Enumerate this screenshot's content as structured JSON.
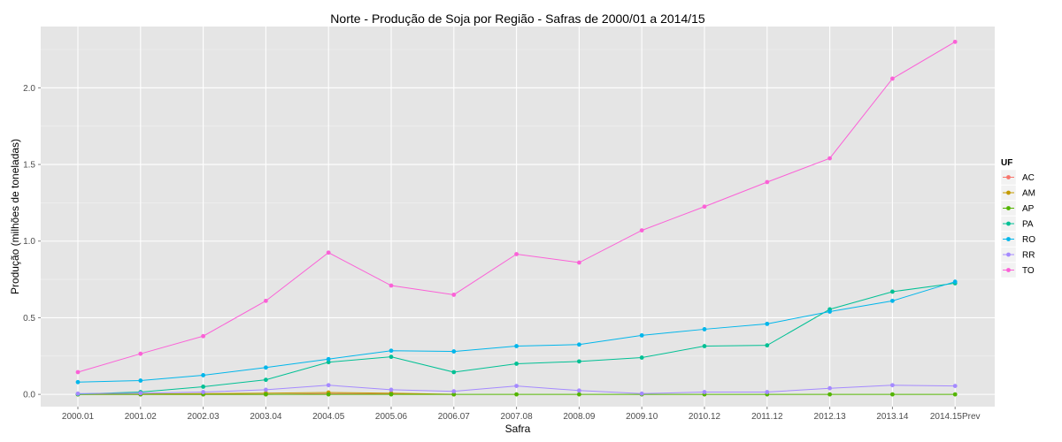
{
  "chart_data": {
    "type": "line",
    "title": "Norte  - Produção de Soja por Região - Safras de 2000/01 a 2014/15",
    "xlabel": "Safra",
    "ylabel": "Produção (milhões de toneladas)",
    "categories": [
      "2000.01",
      "2001.02",
      "2002.03",
      "2003.04",
      "2004.05",
      "2005.06",
      "2006.07",
      "2007.08",
      "2008.09",
      "2009.10",
      "2010.12",
      "2011.12",
      "2012.13",
      "2013.14",
      "2014.15Prev"
    ],
    "ylim": [
      -0.08,
      2.4
    ],
    "yticks": [
      0.0,
      0.5,
      1.0,
      1.5,
      2.0
    ],
    "ytick_labels": [
      "0.0",
      "0.5",
      "1.0",
      "1.5",
      "2.0"
    ],
    "grid": true,
    "legend": {
      "title": "UF",
      "position": "right"
    },
    "series": [
      {
        "name": "AC",
        "color": "#F8766D",
        "values": [
          0.0,
          0.0,
          0.0,
          0.0,
          0.005,
          0.003,
          0.0,
          null,
          null,
          null,
          null,
          null,
          null,
          null,
          null
        ]
      },
      {
        "name": "AM",
        "color": "#C49A00",
        "values": [
          0.0,
          0.002,
          0.005,
          0.008,
          0.012,
          0.008,
          0.0,
          null,
          null,
          null,
          null,
          null,
          null,
          null,
          null
        ]
      },
      {
        "name": "AP",
        "color": "#53B400",
        "values": [
          0.0,
          0.0,
          0.0,
          0.0,
          0.0,
          0.0,
          0.0,
          0.0,
          0.0,
          0.0,
          0.0,
          0.0,
          0.0,
          0.0,
          0.0
        ]
      },
      {
        "name": "PA",
        "color": "#00C094",
        "values": [
          0.002,
          0.015,
          0.05,
          0.095,
          0.21,
          0.245,
          0.145,
          0.2,
          0.215,
          0.24,
          0.315,
          0.32,
          0.555,
          0.67,
          0.725
        ]
      },
      {
        "name": "RO",
        "color": "#00B6EB",
        "values": [
          0.08,
          0.09,
          0.125,
          0.175,
          0.23,
          0.285,
          0.28,
          0.315,
          0.325,
          0.385,
          0.425,
          0.46,
          0.54,
          0.61,
          0.735
        ]
      },
      {
        "name": "RR",
        "color": "#A58AFF",
        "values": [
          0.005,
          0.008,
          0.015,
          0.03,
          0.06,
          0.03,
          0.02,
          0.055,
          0.025,
          0.005,
          0.015,
          0.015,
          0.04,
          0.06,
          0.055
        ]
      },
      {
        "name": "TO",
        "color": "#FB61D7",
        "values": [
          0.145,
          0.265,
          0.38,
          0.61,
          0.925,
          0.71,
          0.65,
          0.915,
          0.86,
          1.07,
          1.225,
          1.385,
          1.54,
          2.06,
          2.3
        ]
      }
    ]
  }
}
